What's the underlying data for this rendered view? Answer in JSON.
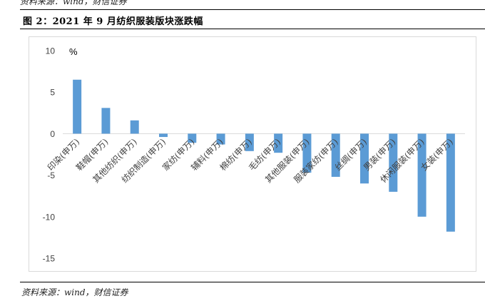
{
  "header": {
    "top_source": "资料来源：wind，财信证券",
    "title": "图 2：2021 年 9 月纺织服装版块涨跌幅"
  },
  "footer": {
    "source": "资料来源：wind，财信证券"
  },
  "chart_data": {
    "type": "bar",
    "unit_label": "%",
    "categories": [
      "印染(申万)",
      "鞋帽(申万)",
      "其他纺织(申万)",
      "纺织制造(申万)",
      "家纺(申万)",
      "辅料(申万)",
      "棉纺(申万)",
      "毛纺(申万)",
      "其他服装(申万)",
      "服装家纺(申万)",
      "丝绸(申万)",
      "男装(申万)",
      "休闲服装(申万)",
      "女装(申万)"
    ],
    "values": [
      6.5,
      3.1,
      1.6,
      -0.4,
      -1.1,
      -1.3,
      -2.1,
      -2.3,
      -4.7,
      -5.2,
      -6.0,
      -7.0,
      -10.0,
      -11.8
    ],
    "ylim": [
      -15,
      10
    ],
    "yticks": [
      10,
      5,
      0,
      -5,
      -10,
      -15
    ],
    "bar_color": "#5b9bd5",
    "grid": false
  }
}
